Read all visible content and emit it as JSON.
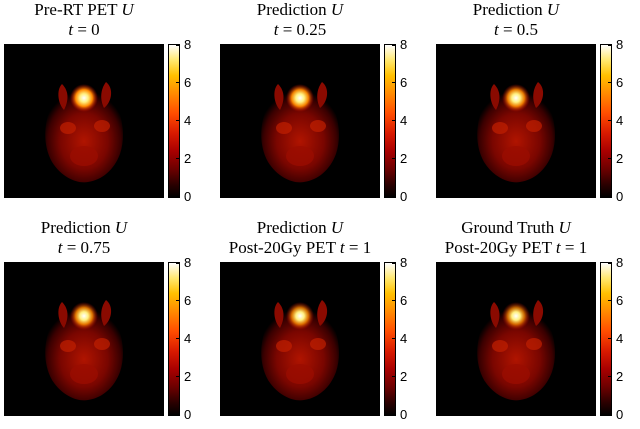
{
  "panels": [
    {
      "title_line1_pre": "Pre-RT PET ",
      "title_line1_var": "U",
      "title_line2_pre": "",
      "title_line2_var": "t",
      "title_line2_post": " = 0",
      "hotspot": 1.0
    },
    {
      "title_line1_pre": "Prediction ",
      "title_line1_var": "U",
      "title_line2_pre": "",
      "title_line2_var": "t",
      "title_line2_post": " = 0.25",
      "hotspot": 0.95
    },
    {
      "title_line1_pre": "Prediction ",
      "title_line1_var": "U",
      "title_line2_pre": "",
      "title_line2_var": "t",
      "title_line2_post": " = 0.5",
      "hotspot": 0.9
    },
    {
      "title_line1_pre": "Prediction ",
      "title_line1_var": "U",
      "title_line2_pre": "",
      "title_line2_var": "t",
      "title_line2_post": " = 0.75",
      "hotspot": 0.85
    },
    {
      "title_line1_pre": "Prediction ",
      "title_line1_var": "U",
      "title_line2_pre": "Post-20Gy PET ",
      "title_line2_var": "t",
      "title_line2_post": " = 1",
      "hotspot": 0.8
    },
    {
      "title_line1_pre": "Ground Truth ",
      "title_line1_var": "U",
      "title_line2_pre": "Post-20Gy PET ",
      "title_line2_var": "t",
      "title_line2_post": " = 1",
      "hotspot": 0.75
    }
  ],
  "colorbar": {
    "ticks": [
      "8",
      "6",
      "4",
      "2",
      "0"
    ],
    "colormap": "hot",
    "range": [
      0,
      8
    ]
  }
}
